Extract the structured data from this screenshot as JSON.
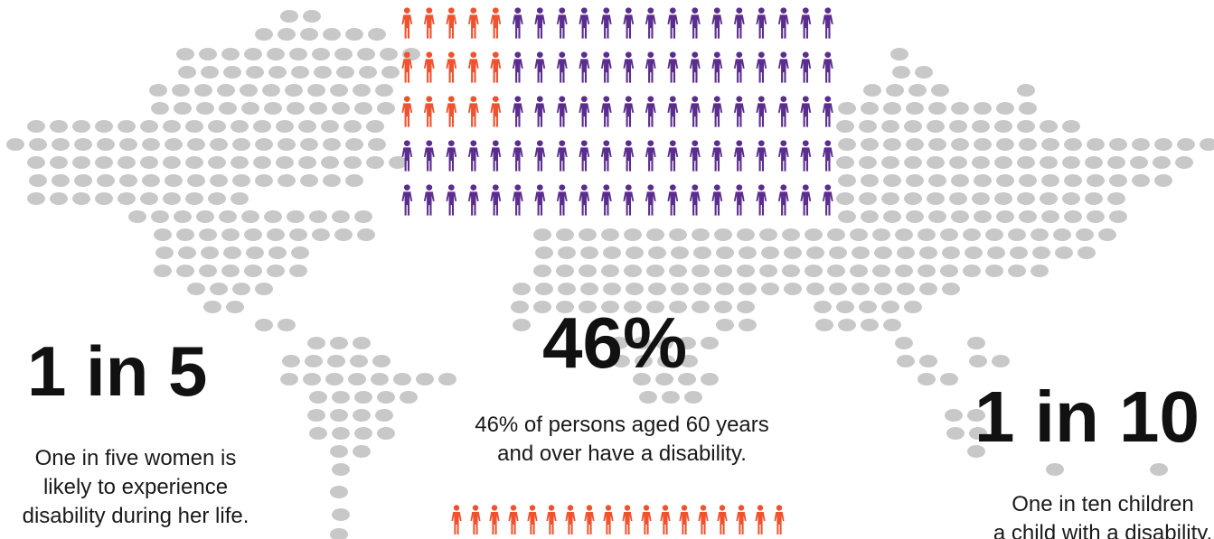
{
  "colors": {
    "background": "#ffffff",
    "map_dot": "#c8c8c8",
    "highlight_person": "#f0522e",
    "base_person": "#5b2d8e",
    "text": "#111111"
  },
  "icons": {
    "person": "person-icon"
  },
  "stats": [
    {
      "headline": "1 in 5",
      "lines": [
        "One in five women is",
        "likely to experience",
        "disability during her life."
      ]
    },
    {
      "headline": "46%",
      "lines": [
        "46% of persons aged 60 years",
        "and over have a disability."
      ]
    },
    {
      "headline": "1 in 10",
      "lines": [
        "One in ten children",
        "a child with a disability."
      ]
    }
  ],
  "people_grid": {
    "rows": 5,
    "per_row": 20,
    "highlighted_per_row": [
      5,
      5,
      5,
      0,
      0
    ]
  },
  "people_strip": {
    "count": 18,
    "highlighted": 18
  }
}
